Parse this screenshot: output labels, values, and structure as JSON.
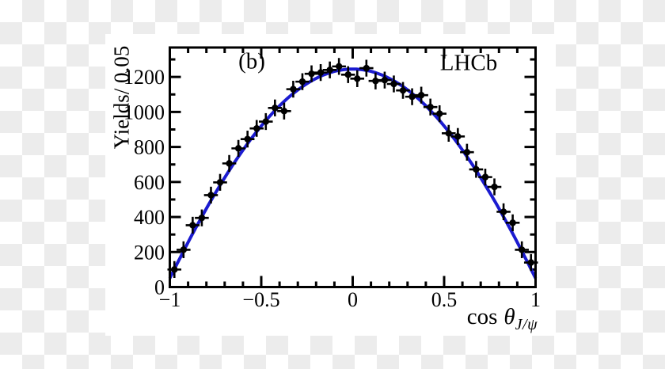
{
  "figure": {
    "panel_label": "(b)",
    "experiment_label": "LHCb"
  },
  "labels": {
    "y_axis_title": "Yields/ 0.05",
    "x_axis_cos": "cos",
    "x_axis_theta": "θ",
    "x_axis_subscript": "J/ψ"
  },
  "chart_data": {
    "type": "scatter",
    "title": "",
    "xlabel": "cos θ_J/ψ",
    "ylabel": "Yields/ 0.05",
    "xlim": [
      -1,
      1
    ],
    "ylim": [
      0,
      1368
    ],
    "grid": false,
    "legend": null,
    "x_axis": {
      "minor_step": 0.1,
      "major_ticks": [
        {
          "v": -1,
          "label": "−1"
        },
        {
          "v": -0.5,
          "label": "−0.5"
        },
        {
          "v": 0,
          "label": "0"
        },
        {
          "v": 0.5,
          "label": "0.5"
        },
        {
          "v": 1,
          "label": "1"
        }
      ]
    },
    "y_axis": {
      "minor_step": 100,
      "major_ticks": [
        {
          "v": 0,
          "label": "0"
        },
        {
          "v": 200,
          "label": "200"
        },
        {
          "v": 400,
          "label": "400"
        },
        {
          "v": 600,
          "label": "600"
        },
        {
          "v": 800,
          "label": "800"
        },
        {
          "v": 1000,
          "label": "1000"
        },
        {
          "v": 1200,
          "label": "1200"
        }
      ]
    },
    "bin_width": 0.05,
    "x_half_bin": 0.025,
    "y_error": 48,
    "x": [
      -0.975,
      -0.925,
      -0.875,
      -0.825,
      -0.775,
      -0.725,
      -0.675,
      -0.625,
      -0.575,
      -0.525,
      -0.475,
      -0.425,
      -0.375,
      -0.325,
      -0.275,
      -0.225,
      -0.175,
      -0.125,
      -0.075,
      -0.025,
      0.025,
      0.075,
      0.125,
      0.175,
      0.225,
      0.275,
      0.325,
      0.375,
      0.425,
      0.475,
      0.525,
      0.575,
      0.625,
      0.675,
      0.725,
      0.775,
      0.825,
      0.875,
      0.925,
      0.975
    ],
    "y": [
      100,
      213,
      353,
      395,
      525,
      598,
      706,
      792,
      845,
      906,
      945,
      1023,
      1005,
      1130,
      1173,
      1218,
      1225,
      1240,
      1260,
      1213,
      1190,
      1250,
      1177,
      1182,
      1160,
      1123,
      1087,
      1096,
      1028,
      990,
      878,
      860,
      770,
      672,
      628,
      572,
      430,
      367,
      213,
      140
    ],
    "fit_curve": {
      "type": "polynomial-even",
      "coefficients": {
        "c0": 1245,
        "c2": -1335,
        "c4": 140
      },
      "color": "#1b1bd0"
    },
    "marker_color": "#000000",
    "frame_color": "#000000"
  }
}
